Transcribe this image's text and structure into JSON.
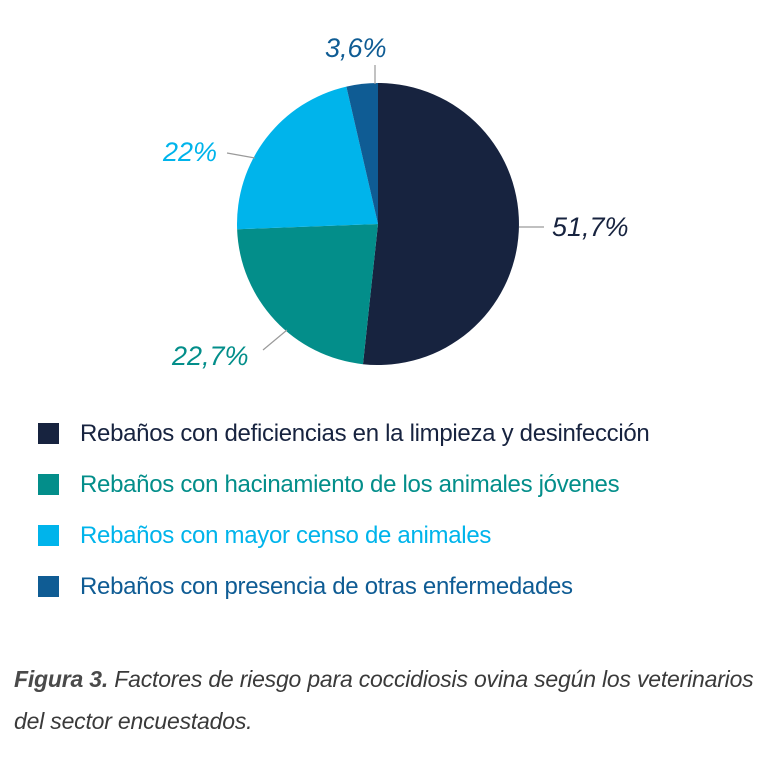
{
  "chart_data": {
    "type": "pie",
    "title": "",
    "slices": [
      {
        "label": "Rebaños con deficiencias en la limpieza y desinfección",
        "value": 51.7,
        "value_label": "51,7%",
        "color": "#17233f"
      },
      {
        "label": "Rebaños con hacinamiento de los animales jóvenes",
        "value": 22.7,
        "value_label": "22,7%",
        "color": "#038e8a"
      },
      {
        "label": "Rebaños con mayor censo de animales",
        "value": 22,
        "value_label": "22%",
        "color": "#00b4eb"
      },
      {
        "label": "Rebaños con presencia de otras enfermedades",
        "value": 3.6,
        "value_label": "3,6%",
        "color": "#0f5c94"
      }
    ],
    "start_angle_deg": 0,
    "direction": "clockwise",
    "legend_position": "bottom"
  },
  "caption": {
    "label": "Figura 3",
    "separator": ".",
    "text": " Factores de riesgo para coccidiosis ovina según los veterinarios del sector encuestados."
  }
}
